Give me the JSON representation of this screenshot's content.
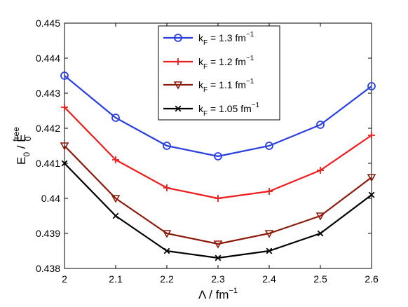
{
  "chart_data": {
    "type": "line",
    "xlabel": "Λ / fm",
    "xlabel_superscript": "−1",
    "ylabel_base": "E",
    "ylabel_sub": "0",
    "ylabel_mid": " / E",
    "ylabel_sub2": "0",
    "ylabel_sup2": "free",
    "xlim": [
      2,
      2.6
    ],
    "ylim": [
      0.438,
      0.445
    ],
    "grid": false,
    "legend_position": "top-center",
    "x": [
      2,
      2.1,
      2.2,
      2.3,
      2.4,
      2.5,
      2.6
    ],
    "x_tick_labels": [
      "2",
      "2.1",
      "2.2",
      "2.3",
      "2.4",
      "2.5",
      "2.6"
    ],
    "y_ticks": [
      0.438,
      0.439,
      0.44,
      0.441,
      0.442,
      0.443,
      0.444,
      0.445
    ],
    "y_tick_labels": [
      "0.438",
      "0.439",
      "0.44",
      "0.441",
      "0.442",
      "0.443",
      "0.444",
      "0.445"
    ],
    "series": [
      {
        "legend_k": "k",
        "legend_sub": "F",
        "legend_value": " = 1.3 fm",
        "legend_sup": "−1",
        "color": "#2a3fe0",
        "marker": "circle",
        "values": [
          0.4435,
          0.4423,
          0.4415,
          0.4412,
          0.4415,
          0.4421,
          0.4432
        ]
      },
      {
        "legend_k": "k",
        "legend_sub": "F",
        "legend_value": " = 1.2 fm",
        "legend_sup": "−1",
        "color": "#ee1c1c",
        "marker": "plus",
        "values": [
          0.4426,
          0.4411,
          0.4403,
          0.44,
          0.4402,
          0.4408,
          0.4418
        ]
      },
      {
        "legend_k": "k",
        "legend_sub": "F",
        "legend_value": " = 1.1 fm",
        "legend_sup": "−1",
        "color": "#8b1a0a",
        "marker": "triangle-down",
        "values": [
          0.4415,
          0.44,
          0.439,
          0.4387,
          0.439,
          0.4395,
          0.4406
        ]
      },
      {
        "legend_k": "k",
        "legend_sub": "F",
        "legend_value": " = 1.05 fm",
        "legend_sup": "−1",
        "color": "#000000",
        "marker": "x",
        "values": [
          0.441,
          0.4395,
          0.4385,
          0.4383,
          0.4385,
          0.439,
          0.4401
        ]
      }
    ]
  }
}
